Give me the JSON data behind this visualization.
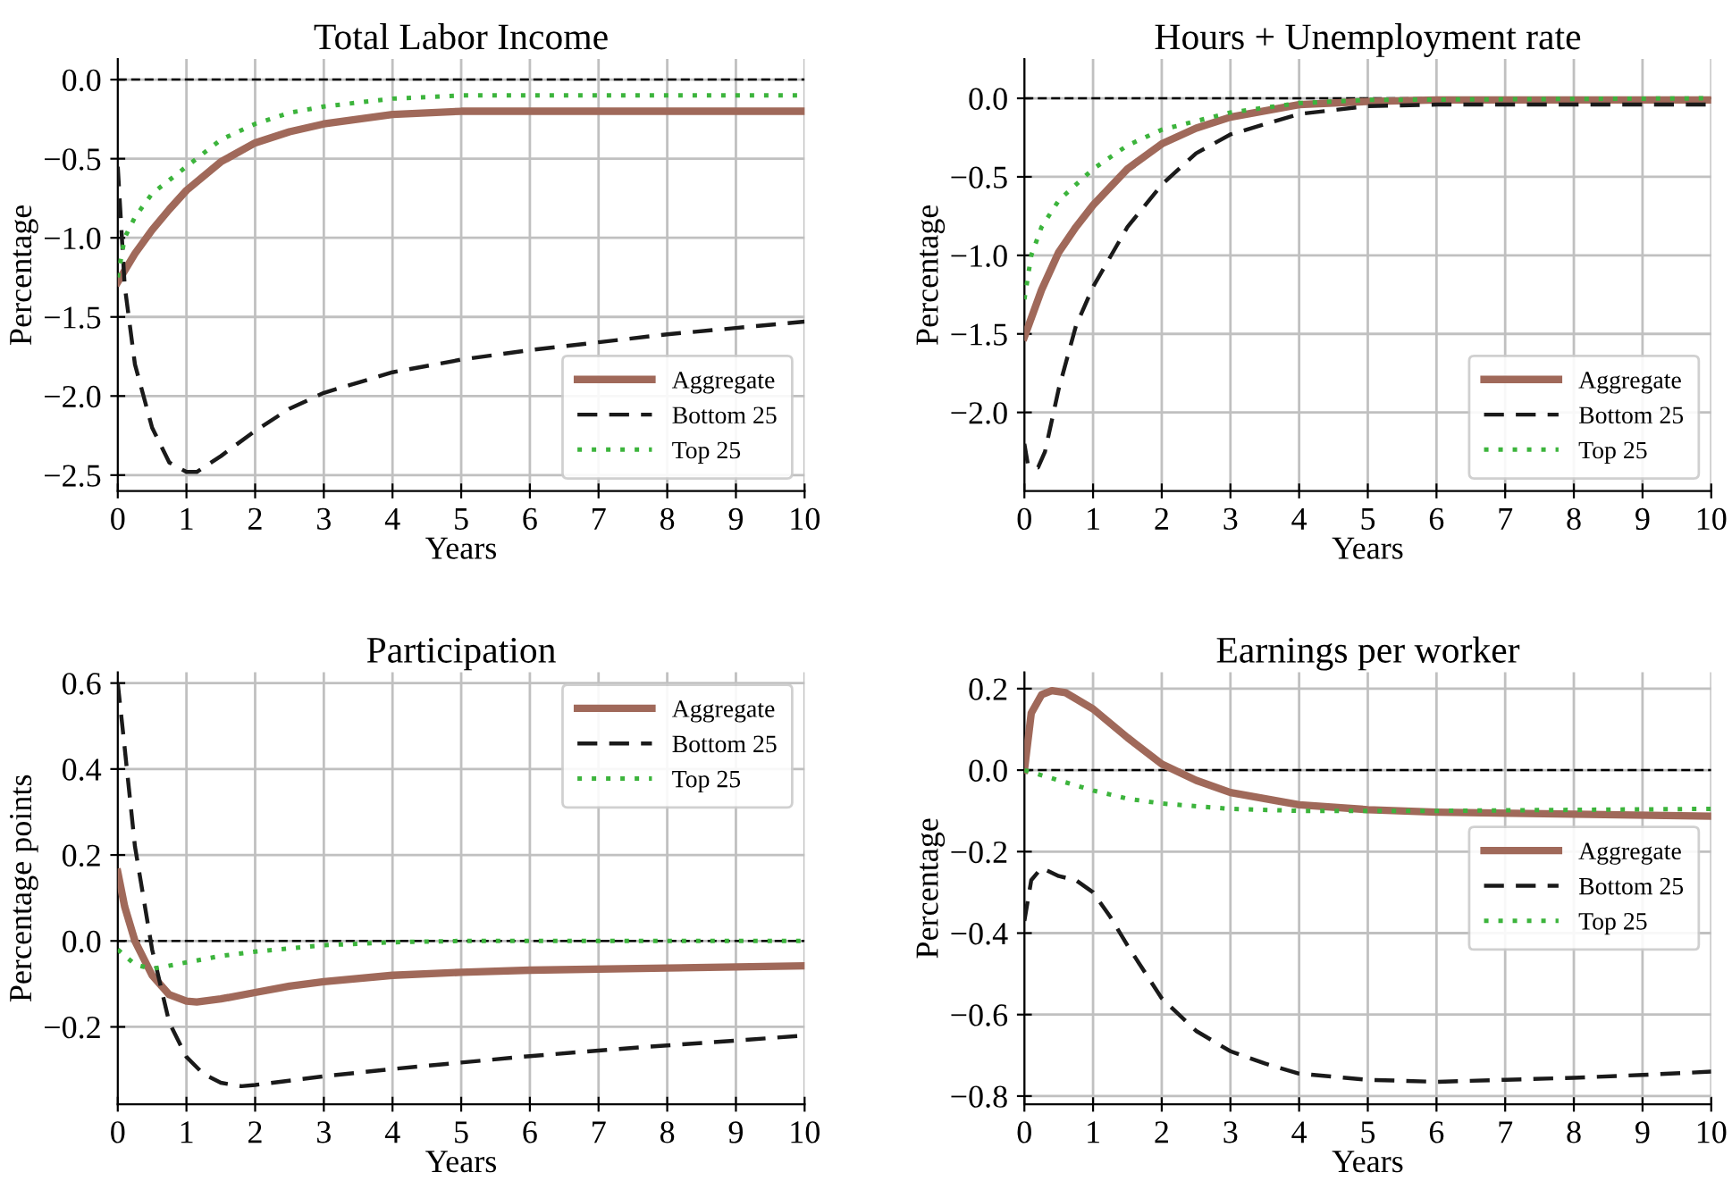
{
  "chart_data": [
    {
      "type": "line",
      "title": "Total Labor Income",
      "xlabel": "Years",
      "ylabel": "Percentage",
      "xlim": [
        0,
        10
      ],
      "xticks": [
        0,
        1,
        2,
        3,
        4,
        5,
        6,
        7,
        8,
        9,
        10
      ],
      "ylim": [
        -2.6,
        0.13
      ],
      "yticks": [
        {
          "value": 0,
          "label": "0.0"
        },
        -0.5,
        {
          "value": -1,
          "label": "−1.0"
        },
        -1.5,
        {
          "value": -2,
          "label": "−2.0"
        },
        -2.5
      ],
      "grid": true,
      "legend": "bottom right",
      "ref_lines": [
        {
          "axis": "y",
          "value": 0,
          "color": "#000000",
          "line_style": "dashed"
        }
      ],
      "series": [
        {
          "name": "Aggregate",
          "color": "#a0695a",
          "line_style": "solid",
          "x": [
            0,
            0.25,
            0.5,
            0.75,
            1,
            1.5,
            2,
            2.5,
            3,
            4,
            5,
            6,
            8,
            10
          ],
          "values": [
            -1.28,
            -1.1,
            -0.95,
            -0.82,
            -0.7,
            -0.52,
            -0.4,
            -0.33,
            -0.28,
            -0.22,
            -0.2,
            -0.2,
            -0.2,
            -0.2
          ]
        },
        {
          "name": "Bottom 25",
          "color": "#1a1a1a",
          "line_style": "dashed",
          "x": [
            0,
            0.1,
            0.25,
            0.5,
            0.75,
            1,
            1.15,
            1.5,
            2,
            2.5,
            3,
            4,
            5,
            6,
            7,
            8,
            9,
            10
          ],
          "values": [
            -0.55,
            -1.3,
            -1.8,
            -2.2,
            -2.42,
            -2.48,
            -2.48,
            -2.38,
            -2.22,
            -2.08,
            -1.98,
            -1.85,
            -1.77,
            -1.71,
            -1.66,
            -1.61,
            -1.57,
            -1.53
          ]
        },
        {
          "name": "Top 25",
          "color": "#3cb43c",
          "line_style": "dotted",
          "x": [
            0,
            0.1,
            0.25,
            0.5,
            1,
            1.5,
            2,
            2.5,
            3,
            4,
            5,
            6,
            10
          ],
          "values": [
            -1.25,
            -1.0,
            -0.87,
            -0.72,
            -0.55,
            -0.38,
            -0.28,
            -0.21,
            -0.17,
            -0.12,
            -0.1,
            -0.1,
            -0.1
          ]
        }
      ]
    },
    {
      "type": "line",
      "title": "Hours + Unemployment rate",
      "xlabel": "Years",
      "ylabel": "Percentage",
      "xlim": [
        0,
        10
      ],
      "xticks": [
        0,
        1,
        2,
        3,
        4,
        5,
        6,
        7,
        8,
        9,
        10
      ],
      "ylim": [
        -2.5,
        0.25
      ],
      "yticks": [
        {
          "value": 0,
          "label": "0.0"
        },
        -0.5,
        {
          "value": -1,
          "label": "−1.0"
        },
        -1.5,
        {
          "value": -2,
          "label": "−2.0"
        }
      ],
      "grid": true,
      "legend": "bottom right",
      "ref_lines": [
        {
          "axis": "y",
          "value": 0,
          "color": "#000000",
          "line_style": "dashed"
        }
      ],
      "series": [
        {
          "name": "Aggregate",
          "color": "#a0695a",
          "line_style": "solid",
          "x": [
            0,
            0.25,
            0.5,
            0.75,
            1,
            1.5,
            2,
            2.5,
            3,
            4,
            5,
            6,
            10
          ],
          "values": [
            -1.52,
            -1.22,
            -0.98,
            -0.82,
            -0.68,
            -0.45,
            -0.29,
            -0.19,
            -0.12,
            -0.04,
            -0.02,
            -0.01,
            -0.01
          ]
        },
        {
          "name": "Bottom 25",
          "color": "#1a1a1a",
          "line_style": "dashed",
          "x": [
            0,
            0.05,
            0.1,
            0.2,
            0.3,
            0.5,
            0.75,
            1,
            1.5,
            2,
            2.5,
            3,
            4,
            5,
            6,
            10
          ],
          "values": [
            -2.2,
            -2.33,
            -2.35,
            -2.35,
            -2.25,
            -1.85,
            -1.45,
            -1.2,
            -0.82,
            -0.55,
            -0.35,
            -0.23,
            -0.1,
            -0.05,
            -0.04,
            -0.04
          ]
        },
        {
          "name": "Top 25",
          "color": "#3cb43c",
          "line_style": "dotted",
          "x": [
            0,
            0.1,
            0.25,
            0.5,
            1,
            1.5,
            2,
            3,
            4,
            5,
            10
          ],
          "values": [
            -1.28,
            -1.0,
            -0.82,
            -0.65,
            -0.45,
            -0.3,
            -0.2,
            -0.09,
            -0.03,
            -0.01,
            0
          ]
        }
      ]
    },
    {
      "type": "line",
      "title": "Participation",
      "xlabel": "Years",
      "ylabel": "Percentage points",
      "xlim": [
        0,
        10
      ],
      "xticks": [
        0,
        1,
        2,
        3,
        4,
        5,
        6,
        7,
        8,
        9,
        10
      ],
      "ylim": [
        -0.38,
        0.625
      ],
      "yticks": [
        -0.2,
        {
          "value": 0,
          "label": "0.0"
        },
        0.2,
        0.4,
        0.6
      ],
      "grid": true,
      "legend": "top right",
      "ref_lines": [
        {
          "axis": "y",
          "value": 0,
          "color": "#000000",
          "line_style": "dashed"
        }
      ],
      "series": [
        {
          "name": "Aggregate",
          "color": "#a0695a",
          "line_style": "solid",
          "x": [
            0,
            0.1,
            0.25,
            0.5,
            0.75,
            1,
            1.15,
            1.5,
            2,
            2.5,
            3,
            4,
            5,
            6,
            8,
            10
          ],
          "values": [
            0.16,
            0.08,
            0.0,
            -0.08,
            -0.125,
            -0.14,
            -0.142,
            -0.135,
            -0.12,
            -0.105,
            -0.095,
            -0.08,
            -0.073,
            -0.068,
            -0.063,
            -0.058
          ]
        },
        {
          "name": "Bottom 25",
          "color": "#1a1a1a",
          "line_style": "dashed",
          "x": [
            0,
            0.1,
            0.25,
            0.5,
            0.75,
            1,
            1.25,
            1.5,
            1.8,
            2,
            3,
            4,
            5,
            6,
            7,
            8,
            9,
            10
          ],
          "values": [
            0.6,
            0.45,
            0.22,
            -0.02,
            -0.19,
            -0.27,
            -0.31,
            -0.33,
            -0.338,
            -0.335,
            -0.315,
            -0.298,
            -0.283,
            -0.268,
            -0.255,
            -0.243,
            -0.232,
            -0.22
          ]
        },
        {
          "name": "Top 25",
          "color": "#3cb43c",
          "line_style": "dotted",
          "x": [
            0,
            0.25,
            0.5,
            1,
            1.5,
            2,
            3,
            4,
            5,
            10
          ],
          "values": [
            -0.02,
            -0.055,
            -0.065,
            -0.05,
            -0.035,
            -0.025,
            -0.01,
            -0.003,
            0,
            0
          ]
        }
      ]
    },
    {
      "type": "line",
      "title": "Earnings per worker",
      "xlabel": "Years",
      "ylabel": "Percentage",
      "xlim": [
        0,
        10
      ],
      "xticks": [
        0,
        1,
        2,
        3,
        4,
        5,
        6,
        7,
        8,
        9,
        10
      ],
      "ylim": [
        -0.82,
        0.24
      ],
      "yticks": [
        0.2,
        {
          "value": 0,
          "label": "0.0"
        },
        -0.2,
        -0.4,
        -0.6,
        -0.8
      ],
      "grid": true,
      "legend": "right",
      "ref_lines": [
        {
          "axis": "y",
          "value": 0,
          "color": "#000000",
          "line_style": "dashed"
        }
      ],
      "series": [
        {
          "name": "Aggregate",
          "color": "#a0695a",
          "line_style": "solid",
          "x": [
            0,
            0.1,
            0.25,
            0.4,
            0.6,
            1,
            1.5,
            2,
            2.5,
            3,
            4,
            5,
            6,
            8,
            10
          ],
          "values": [
            0.0,
            0.14,
            0.185,
            0.195,
            0.19,
            0.15,
            0.08,
            0.015,
            -0.025,
            -0.055,
            -0.085,
            -0.097,
            -0.103,
            -0.108,
            -0.113
          ]
        },
        {
          "name": "Bottom 25",
          "color": "#1a1a1a",
          "line_style": "dashed",
          "x": [
            0,
            0.1,
            0.25,
            0.5,
            0.75,
            1,
            1.25,
            1.5,
            2,
            2.5,
            3,
            3.5,
            4,
            5,
            6,
            7,
            8,
            9,
            10
          ],
          "values": [
            -0.37,
            -0.27,
            -0.24,
            -0.26,
            -0.27,
            -0.3,
            -0.36,
            -0.43,
            -0.56,
            -0.64,
            -0.69,
            -0.72,
            -0.745,
            -0.76,
            -0.765,
            -0.76,
            -0.755,
            -0.748,
            -0.74
          ]
        },
        {
          "name": "Top 25",
          "color": "#3cb43c",
          "line_style": "dotted",
          "x": [
            0,
            0.5,
            1,
            1.5,
            2,
            3,
            4,
            5,
            6,
            10
          ],
          "values": [
            0,
            -0.025,
            -0.05,
            -0.07,
            -0.082,
            -0.095,
            -0.1,
            -0.1,
            -0.1,
            -0.095
          ]
        }
      ]
    }
  ]
}
